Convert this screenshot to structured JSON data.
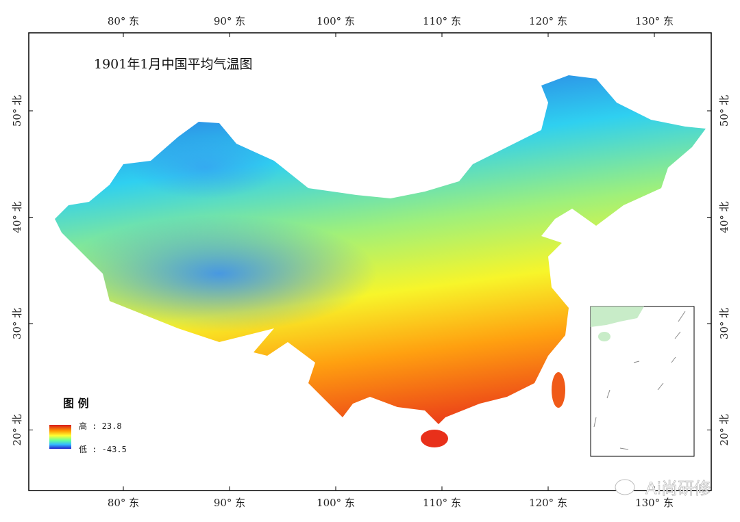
{
  "title": "1901年1月中国平均气温图",
  "axes": {
    "longitude_labels": [
      "80° 东",
      "90° 东",
      "100° 东",
      "110° 东",
      "120° 东",
      "130° 东"
    ],
    "longitudes": [
      80,
      90,
      100,
      110,
      120,
      130
    ],
    "latitude_labels": [
      "50° 北",
      "40° 北",
      "30° 北",
      "20° 北"
    ],
    "latitudes": [
      50,
      40,
      30,
      20
    ]
  },
  "legend": {
    "title": "图 例",
    "high_label": "高 : 23.8",
    "low_label": "低 : -43.5",
    "high_value": 23.8,
    "low_value": -43.5,
    "colormap": [
      "#d7191c",
      "#ff8c00",
      "#ffff33",
      "#7fff7f",
      "#33ccff",
      "#2222cc"
    ]
  },
  "watermark": "Ai尚研修"
}
